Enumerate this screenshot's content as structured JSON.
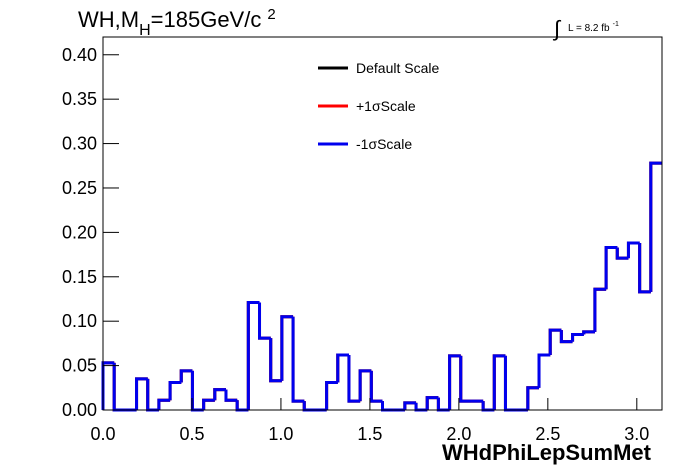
{
  "chart_data": {
    "type": "histogram",
    "title": "WH,M",
    "title_sub": "H",
    "title_rest": "=185GeV/c",
    "title_sup": "2",
    "lumi_integral": "∫",
    "lumi": "L = 8.2 fb",
    "lumi_sup": "-1",
    "x_label": "WHdPhiLepSumMet",
    "bins": [
      0,
      0.0628,
      0.1257,
      0.1885,
      0.2513,
      0.3142,
      0.377,
      0.4398,
      0.5027,
      0.5655,
      0.6283,
      0.6912,
      0.754,
      0.8168,
      0.8796,
      0.9425,
      1.0053,
      1.0681,
      1.131,
      1.1938,
      1.2566,
      1.3195,
      1.3823,
      1.4451,
      1.508,
      1.5708,
      1.6336,
      1.6965,
      1.7593,
      1.8221,
      1.885,
      1.9478,
      2.0106,
      2.0735,
      2.1363,
      2.1991,
      2.2619,
      2.3248,
      2.3876,
      2.4504,
      2.5133,
      2.5761,
      2.6389,
      2.7018,
      2.7646,
      2.8274,
      2.8903,
      2.9531,
      3.0159,
      3.0788,
      3.1416
    ],
    "series": [
      {
        "name": "Default Scale",
        "color": "#000000",
        "values": [
          0.053,
          0,
          0,
          0.035,
          0,
          0.011,
          0.031,
          0.044,
          0,
          0.011,
          0.023,
          0.011,
          0,
          0.121,
          0.081,
          0.033,
          0.105,
          0.01,
          0,
          0,
          0.031,
          0.062,
          0.01,
          0.044,
          0.01,
          0,
          0,
          0.008,
          0,
          0.014,
          0,
          0.061,
          0.01,
          0.01,
          0,
          0.061,
          0,
          0,
          0.025,
          0.062,
          0.09,
          0.077,
          0.085,
          0.088,
          0.136,
          0.183,
          0.171,
          0.188,
          0.133,
          0.278
        ]
      },
      {
        "name": "+1σScale",
        "color": "#ff0000",
        "values": [
          0.053,
          0,
          0,
          0.035,
          0,
          0.011,
          0.031,
          0.044,
          0,
          0.011,
          0.023,
          0.011,
          0,
          0.121,
          0.081,
          0.033,
          0.105,
          0.01,
          0,
          0,
          0.031,
          0.062,
          0.01,
          0.044,
          0.01,
          0,
          0,
          0.008,
          0,
          0.014,
          0,
          0.061,
          0.01,
          0.01,
          0,
          0.061,
          0,
          0,
          0.025,
          0.062,
          0.09,
          0.077,
          0.085,
          0.088,
          0.136,
          0.183,
          0.171,
          0.188,
          0.133,
          0.278
        ]
      },
      {
        "name": "-1σScale",
        "color": "#0000ee",
        "values": [
          0.053,
          0,
          0,
          0.035,
          0,
          0.011,
          0.031,
          0.044,
          0,
          0.011,
          0.023,
          0.011,
          0,
          0.121,
          0.081,
          0.033,
          0.105,
          0.01,
          0,
          0,
          0.031,
          0.062,
          0.01,
          0.044,
          0.01,
          0,
          0,
          0.008,
          0,
          0.014,
          0,
          0.061,
          0.01,
          0.01,
          0,
          0.061,
          0,
          0,
          0.025,
          0.062,
          0.09,
          0.077,
          0.085,
          0.088,
          0.136,
          0.183,
          0.171,
          0.188,
          0.133,
          0.278
        ]
      }
    ],
    "xlim": [
      0,
      3.1416
    ],
    "ylim": [
      0,
      0.42
    ],
    "xticks": [
      {
        "value": 0,
        "label": "0.0"
      },
      {
        "value": 0.5,
        "label": "0.5"
      },
      {
        "value": 1,
        "label": "1.0"
      },
      {
        "value": 1.5,
        "label": "1.5"
      },
      {
        "value": 2,
        "label": "2.0"
      },
      {
        "value": 2.5,
        "label": "2.5"
      },
      {
        "value": 3,
        "label": "3.0"
      }
    ],
    "yticks": [
      {
        "value": 0,
        "label": "0.00"
      },
      {
        "value": 0.05,
        "label": "0.05"
      },
      {
        "value": 0.1,
        "label": "0.10"
      },
      {
        "value": 0.15,
        "label": "0.15"
      },
      {
        "value": 0.2,
        "label": "0.20"
      },
      {
        "value": 0.25,
        "label": "0.25"
      },
      {
        "value": 0.3,
        "label": "0.30"
      },
      {
        "value": 0.35,
        "label": "0.35"
      },
      {
        "value": 0.4,
        "label": "0.40"
      }
    ],
    "legend": "top-center"
  }
}
